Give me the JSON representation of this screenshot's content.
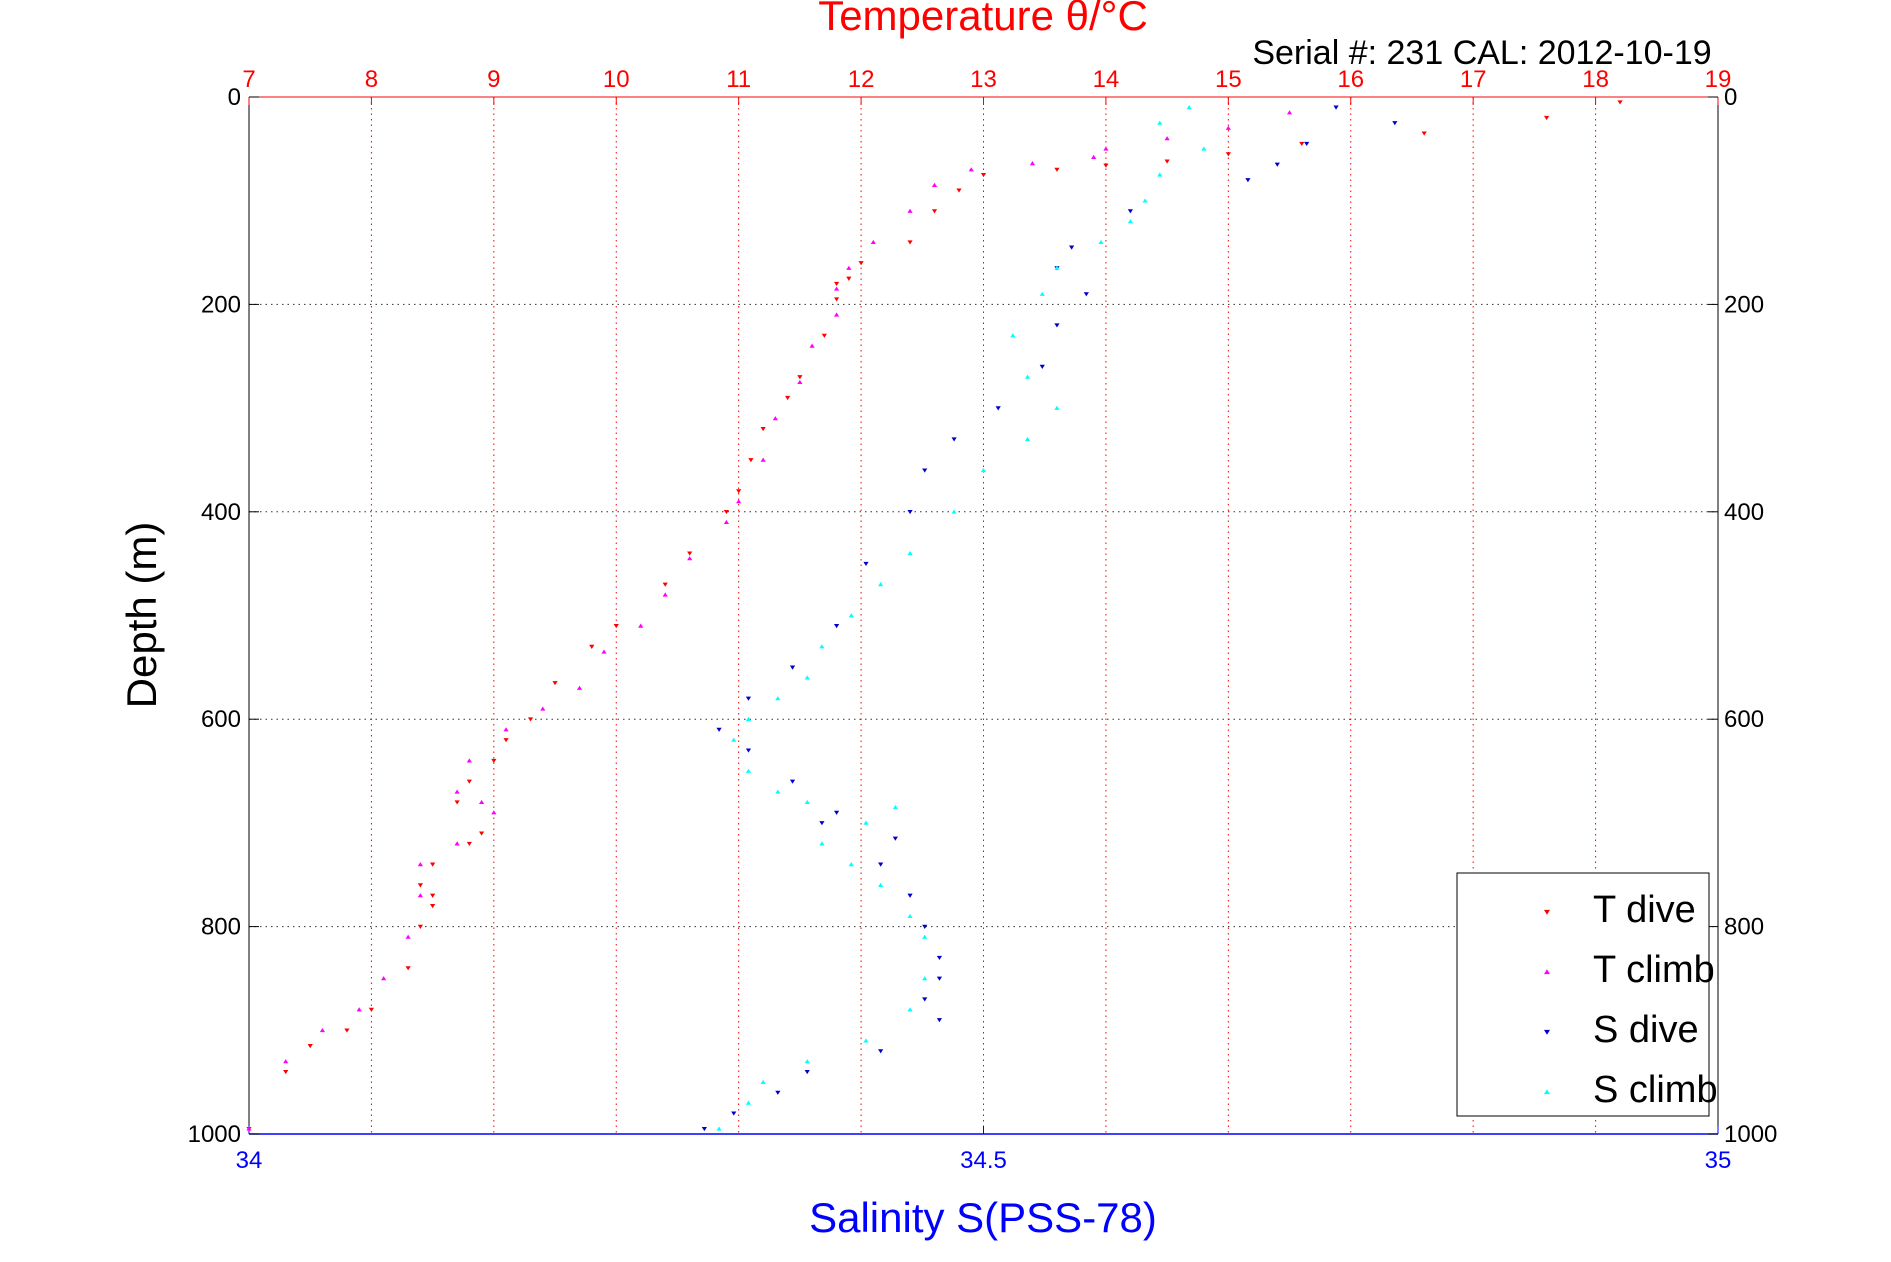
{
  "header": {
    "top_title": "Temperature θ/°C",
    "serial_text": "Serial #: 231  CAL: 2012-10-19"
  },
  "colors": {
    "temperature_axis": "#ff0000",
    "salinity_axis": "#0000ff",
    "t_dive": "#ff0000",
    "t_climb": "#ff00ff",
    "s_dive": "#0000cc",
    "s_climb": "#00ffff",
    "grid": "#333333"
  },
  "chart_data": {
    "type": "scatter",
    "grid": true,
    "legend_position": "bottom-right",
    "y_axis": {
      "label": "Depth (m)",
      "range": [
        0,
        1000
      ],
      "reversed": true,
      "ticks": [
        0,
        200,
        400,
        600,
        800,
        1000
      ],
      "tick_labels": [
        "0",
        "200",
        "400",
        "600",
        "800",
        "1000"
      ]
    },
    "x_axis_top": {
      "label": "Temperature θ/°C",
      "range": [
        7,
        19
      ],
      "ticks": [
        7,
        8,
        9,
        10,
        11,
        12,
        13,
        14,
        15,
        16,
        17,
        18,
        19
      ],
      "tick_labels": [
        "7",
        "8",
        "9",
        "10",
        "11",
        "12",
        "13",
        "14",
        "15",
        "16",
        "17",
        "18",
        "19"
      ]
    },
    "x_axis_bottom": {
      "label": "Salinity S(PSS-78)",
      "range": [
        34,
        35
      ],
      "ticks": [
        34,
        34.5,
        35
      ],
      "tick_labels": [
        "34",
        "34.5",
        "35"
      ]
    },
    "series": [
      {
        "name": "T dive",
        "axis": "top",
        "marker": "triangle-down",
        "color": "#ff0000",
        "x": [
          18.2,
          17.6,
          16.6,
          15.6,
          15.0,
          14.5,
          14.0,
          13.6,
          13.0,
          12.8,
          12.6,
          12.4,
          12.0,
          11.9,
          11.8,
          11.8,
          11.7,
          11.5,
          11.4,
          11.2,
          11.1,
          11.0,
          10.9,
          10.6,
          10.4,
          10.0,
          9.8,
          9.5,
          9.3,
          9.1,
          9.0,
          8.8,
          8.7,
          8.9,
          8.8,
          8.5,
          8.4,
          8.5,
          8.5,
          8.4,
          8.3,
          8.0,
          7.8,
          7.5,
          7.3,
          7.0
        ],
        "y": [
          5,
          20,
          35,
          45,
          55,
          62,
          66,
          70,
          75,
          90,
          110,
          140,
          160,
          175,
          180,
          195,
          230,
          270,
          290,
          320,
          350,
          380,
          400,
          440,
          470,
          510,
          530,
          565,
          600,
          620,
          640,
          660,
          680,
          710,
          720,
          740,
          760,
          770,
          780,
          800,
          840,
          880,
          900,
          915,
          940,
          995
        ]
      },
      {
        "name": "T climb",
        "axis": "top",
        "marker": "triangle-up",
        "color": "#ff00ff",
        "x": [
          15.5,
          15.0,
          14.5,
          14.0,
          13.9,
          13.4,
          12.9,
          12.6,
          12.4,
          12.1,
          11.9,
          11.8,
          11.8,
          11.6,
          11.5,
          11.3,
          11.2,
          11.0,
          10.9,
          10.6,
          10.4,
          10.2,
          9.9,
          9.7,
          9.4,
          9.1,
          8.8,
          8.7,
          8.9,
          9.0,
          8.7,
          8.4,
          8.4,
          8.3,
          8.1,
          7.9,
          7.6,
          7.3,
          7.0
        ],
        "y": [
          15,
          30,
          40,
          50,
          58,
          64,
          70,
          85,
          110,
          140,
          165,
          185,
          210,
          240,
          275,
          310,
          350,
          390,
          410,
          445,
          480,
          510,
          535,
          570,
          590,
          610,
          640,
          670,
          680,
          690,
          720,
          740,
          770,
          810,
          850,
          880,
          900,
          930,
          995
        ]
      },
      {
        "name": "S dive",
        "axis": "bottom",
        "marker": "triangle-down",
        "color": "#0000cc",
        "x": [
          34.74,
          34.78,
          34.72,
          34.7,
          34.68,
          34.6,
          34.56,
          34.55,
          34.57,
          34.55,
          34.54,
          34.51,
          34.48,
          34.46,
          34.45,
          34.42,
          34.4,
          34.37,
          34.34,
          34.32,
          34.34,
          34.37,
          34.4,
          34.39,
          34.44,
          34.43,
          34.45,
          34.46,
          34.47,
          34.47,
          34.46,
          34.47,
          34.43,
          34.38,
          34.36,
          34.33,
          34.31
        ],
        "y": [
          10,
          25,
          45,
          65,
          80,
          110,
          145,
          165,
          190,
          220,
          260,
          300,
          330,
          360,
          400,
          450,
          510,
          550,
          580,
          610,
          630,
          660,
          690,
          700,
          715,
          740,
          770,
          800,
          830,
          850,
          870,
          890,
          920,
          940,
          960,
          980,
          995
        ]
      },
      {
        "name": "S climb",
        "axis": "bottom",
        "marker": "triangle-up",
        "color": "#00ffff",
        "x": [
          34.64,
          34.62,
          34.65,
          34.62,
          34.61,
          34.6,
          34.58,
          34.55,
          34.54,
          34.52,
          34.53,
          34.55,
          34.53,
          34.5,
          34.48,
          34.45,
          34.43,
          34.41,
          34.39,
          34.38,
          34.36,
          34.34,
          34.33,
          34.34,
          34.36,
          34.38,
          34.44,
          34.42,
          34.39,
          34.41,
          34.43,
          34.45,
          34.46,
          34.46,
          34.45,
          34.42,
          34.38,
          34.35,
          34.34,
          34.32
        ],
        "y": [
          10,
          25,
          50,
          75,
          100,
          120,
          140,
          165,
          190,
          230,
          270,
          300,
          330,
          360,
          400,
          440,
          470,
          500,
          530,
          560,
          580,
          600,
          620,
          650,
          670,
          680,
          685,
          700,
          720,
          740,
          760,
          790,
          810,
          850,
          880,
          910,
          930,
          950,
          970,
          995
        ]
      }
    ]
  }
}
